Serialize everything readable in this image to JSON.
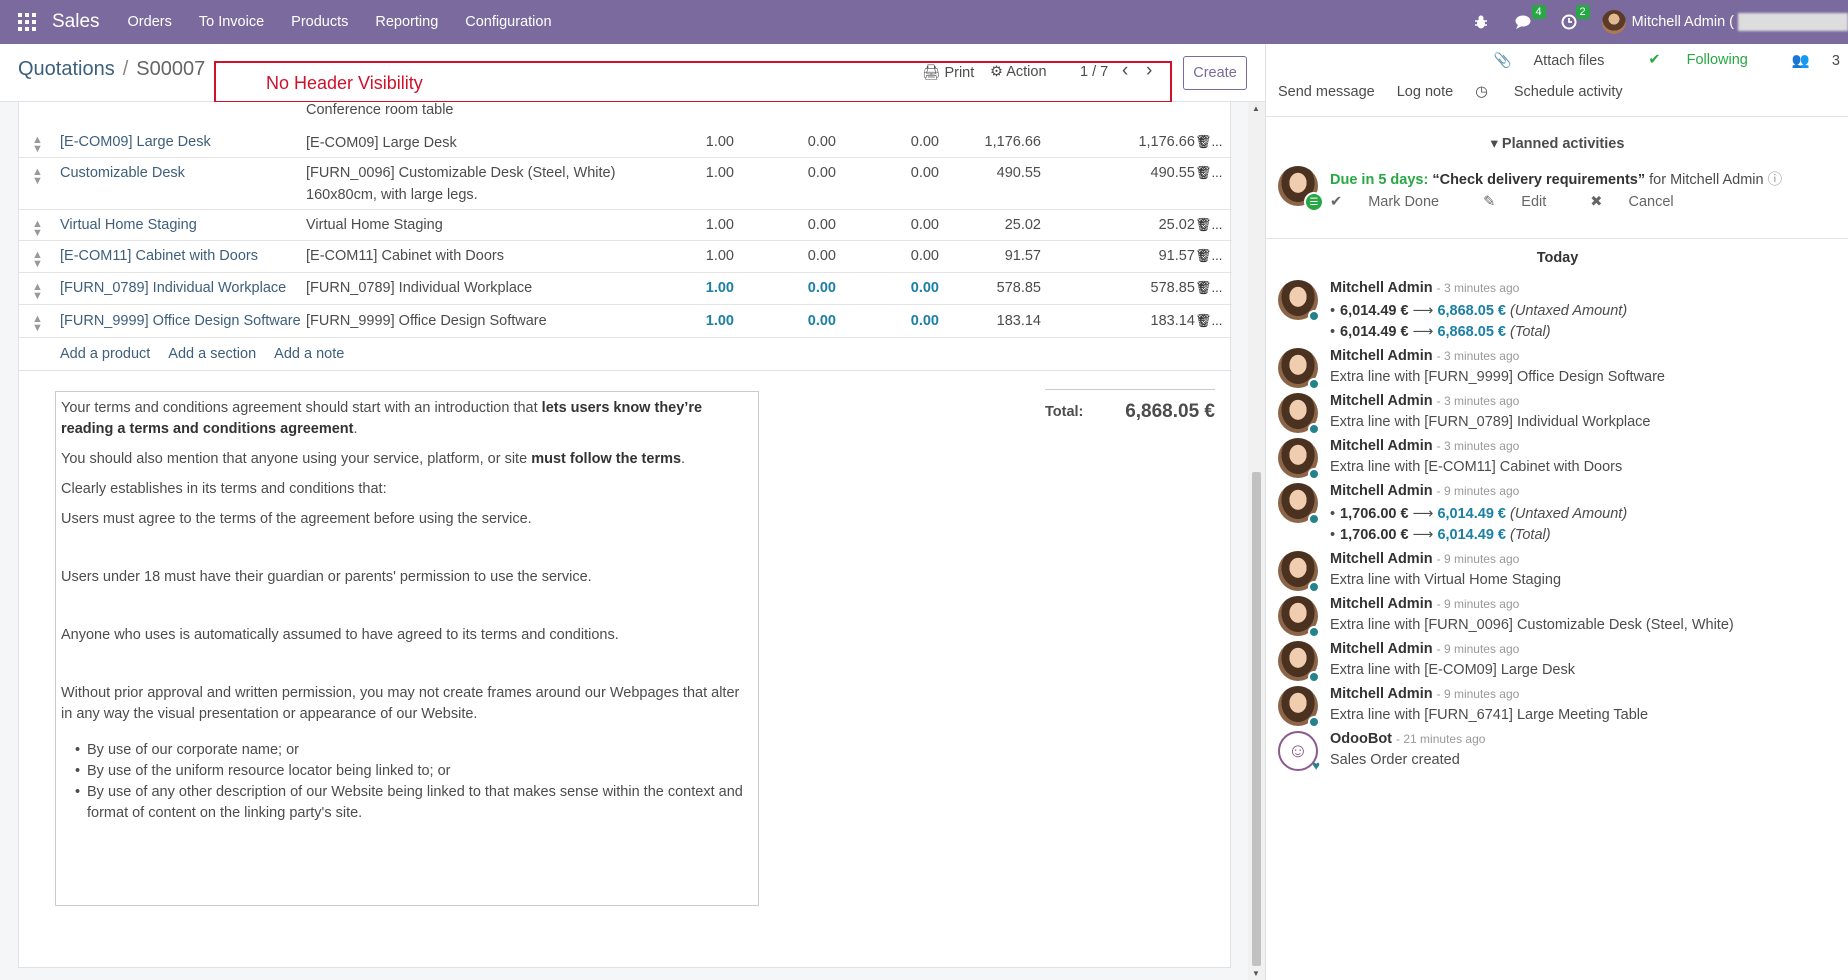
{
  "navbar": {
    "app_name": "Sales",
    "menu": [
      "Orders",
      "To Invoice",
      "Products",
      "Reporting",
      "Configuration"
    ],
    "messages_badge": "4",
    "activities_badge": "2",
    "user_name": "Mitchell Admin ("
  },
  "control_panel": {
    "breadcrumb_parent": "Quotations",
    "breadcrumb_sep": "/",
    "breadcrumb_current": "S00007",
    "annotation": "No Header Visibility",
    "print_label": "Print",
    "action_label": "Action",
    "pager": "1 / 7",
    "create_label": "Create"
  },
  "order_lines": {
    "partial_desc": "Conference room table",
    "rows": [
      {
        "product": "[E-COM09] Large Desk",
        "desc": "[E-COM09] Large Desk",
        "qty": "1.00",
        "disc1": "0.00",
        "disc2": "0.00",
        "price": "1,176.66",
        "subtotal": "1,176.66 €"
      },
      {
        "product": "Customizable Desk",
        "desc": "[FURN_0096] Customizable Desk (Steel, White) 160x80cm, with large legs.",
        "qty": "1.00",
        "disc1": "0.00",
        "disc2": "0.00",
        "price": "490.55",
        "subtotal": "490.55 €"
      },
      {
        "product": "Virtual Home Staging",
        "desc": "Virtual Home Staging",
        "qty": "1.00",
        "disc1": "0.00",
        "disc2": "0.00",
        "price": "25.02",
        "subtotal": "25.02 €"
      },
      {
        "product": "[E-COM11] Cabinet with Doors",
        "desc": "[E-COM11] Cabinet with Doors",
        "qty": "1.00",
        "disc1": "0.00",
        "disc2": "0.00",
        "price": "91.57",
        "subtotal": "91.57 €"
      },
      {
        "product": "[FURN_0789] Individual Workplace",
        "desc": "[FURN_0789] Individual Workplace",
        "qty": "1.00",
        "disc1": "0.00",
        "disc2": "0.00",
        "price": "578.85",
        "subtotal": "578.85 €"
      },
      {
        "product": "[FURN_9999] Office Design Software",
        "desc": "[FURN_9999] Office Design Software",
        "qty": "1.00",
        "disc1": "0.00",
        "disc2": "0.00",
        "price": "183.14",
        "subtotal": "183.14 €"
      }
    ],
    "add_product": "Add a product",
    "add_section": "Add a section",
    "add_note": "Add a note",
    "trash_suffix": "..."
  },
  "terms": {
    "p1_a": "Your terms and conditions agreement should start with an introduction that ",
    "p1_b": "lets users know they’re reading a terms and conditions agreement",
    "p1_c": ".",
    "p2_a": "You should also mention that anyone using your service, platform, or site ",
    "p2_b": "must follow the terms",
    "p2_c": ".",
    "p3": "Clearly establishes in its terms and conditions that:",
    "p4": "Users must agree to the terms of the agreement before using the service.",
    "p5": "Users under 18 must have their guardian or parents' permission to use the service.",
    "p6": "Anyone who uses is automatically assumed to have agreed to its terms and conditions.",
    "p7": "Without prior approval and written permission, you may not create frames around our Webpages that alter in any way the visual presentation or appearance of our Website.",
    "bullets": [
      "By use of our corporate name; or",
      "By use of the uniform resource locator being linked to; or",
      "By use of any other description of our Website being linked to that makes sense within the context and format of content on the linking party's site."
    ]
  },
  "totals": {
    "label": "Total:",
    "value": "6,868.05 €"
  },
  "chatter": {
    "attach_files": "Attach files",
    "following": "Following",
    "followers_count": "3",
    "send_message": "Send message",
    "log_note": "Log note",
    "schedule_activity": "Schedule activity",
    "planned_activities": "Planned activities",
    "activity": {
      "due": "Due in 5 days:",
      "summary": "“Check delivery requirements”",
      "for_text": "for Mitchell Admin",
      "mark_done": "Mark Done",
      "edit": "Edit",
      "cancel": "Cancel"
    },
    "today": "Today",
    "messages": [
      {
        "author": "Mitchell Admin",
        "ago": "- 3 minutes ago",
        "tracking": [
          {
            "old": "6,014.49 €",
            "new": "6,868.05 €",
            "field": "(Untaxed Amount)"
          },
          {
            "old": "6,014.49 €",
            "new": "6,868.05 €",
            "field": "(Total)"
          }
        ]
      },
      {
        "author": "Mitchell Admin",
        "ago": "- 3 minutes ago",
        "body": "Extra line with [FURN_9999] Office Design Software"
      },
      {
        "author": "Mitchell Admin",
        "ago": "- 3 minutes ago",
        "body": "Extra line with [FURN_0789] Individual Workplace"
      },
      {
        "author": "Mitchell Admin",
        "ago": "- 3 minutes ago",
        "body": "Extra line with [E-COM11] Cabinet with Doors"
      },
      {
        "author": "Mitchell Admin",
        "ago": "- 9 minutes ago",
        "tracking": [
          {
            "old": "1,706.00 €",
            "new": "6,014.49 €",
            "field": "(Untaxed Amount)"
          },
          {
            "old": "1,706.00 €",
            "new": "6,014.49 €",
            "field": "(Total)"
          }
        ]
      },
      {
        "author": "Mitchell Admin",
        "ago": "- 9 minutes ago",
        "body": "Extra line with Virtual Home Staging"
      },
      {
        "author": "Mitchell Admin",
        "ago": "- 9 minutes ago",
        "body": "Extra line with [FURN_0096] Customizable Desk (Steel, White)"
      },
      {
        "author": "Mitchell Admin",
        "ago": "- 9 minutes ago",
        "body": "Extra line with [E-COM09] Large Desk"
      },
      {
        "author": "Mitchell Admin",
        "ago": "- 9 minutes ago",
        "body": "Extra line with [FURN_6741] Large Meeting Table"
      },
      {
        "author": "OdooBot",
        "ago": "- 21 minutes ago",
        "body": "Sales Order created",
        "bot": true
      }
    ]
  }
}
